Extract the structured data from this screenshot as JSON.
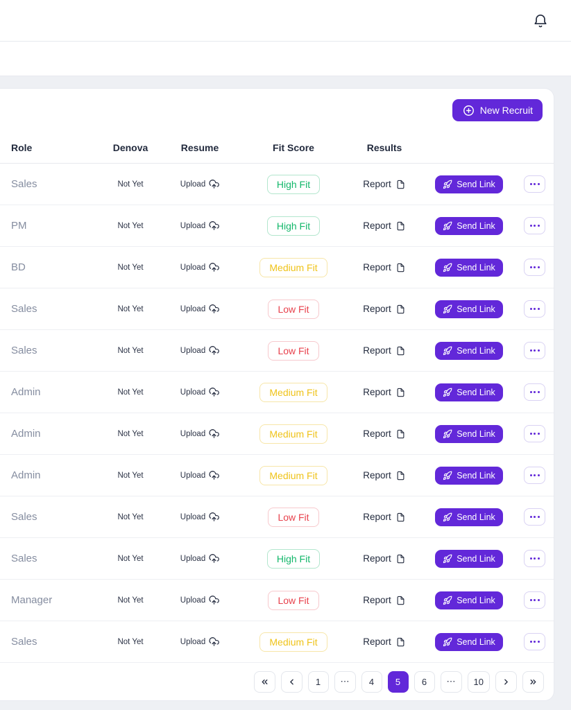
{
  "topbar": {
    "bell_icon": "bell"
  },
  "card_header": {
    "new_recruit_label": "New Recruit"
  },
  "table": {
    "columns": [
      "Role",
      "Denova",
      "Resume",
      "Fit Score",
      "Results"
    ],
    "rows": [
      {
        "role": "Sales",
        "denova": "Not Yet",
        "resume": "Upload",
        "fit": "High Fit",
        "fit_level": "high",
        "results": "Report",
        "action": "Send Link"
      },
      {
        "role": "PM",
        "denova": "Not Yet",
        "resume": "Upload",
        "fit": "High Fit",
        "fit_level": "high",
        "results": "Report",
        "action": "Send Link"
      },
      {
        "role": "BD",
        "denova": "Not Yet",
        "resume": "Upload",
        "fit": "Medium Fit",
        "fit_level": "medium",
        "results": "Report",
        "action": "Send Link"
      },
      {
        "role": "Sales",
        "denova": "Not Yet",
        "resume": "Upload",
        "fit": "Low Fit",
        "fit_level": "low",
        "results": "Report",
        "action": "Send Link"
      },
      {
        "role": "Sales",
        "denova": "Not Yet",
        "resume": "Upload",
        "fit": "Low Fit",
        "fit_level": "low",
        "results": "Report",
        "action": "Send Link"
      },
      {
        "role": "Admin",
        "denova": "Not Yet",
        "resume": "Upload",
        "fit": "Medium Fit",
        "fit_level": "medium",
        "results": "Report",
        "action": "Send Link"
      },
      {
        "role": "Admin",
        "denova": "Not Yet",
        "resume": "Upload",
        "fit": "Medium Fit",
        "fit_level": "medium",
        "results": "Report",
        "action": "Send Link"
      },
      {
        "role": "Admin",
        "denova": "Not Yet",
        "resume": "Upload",
        "fit": "Medium Fit",
        "fit_level": "medium",
        "results": "Report",
        "action": "Send Link"
      },
      {
        "role": "Sales",
        "denova": "Not Yet",
        "resume": "Upload",
        "fit": "Low Fit",
        "fit_level": "low",
        "results": "Report",
        "action": "Send Link"
      },
      {
        "role": "Sales",
        "denova": "Not Yet",
        "resume": "Upload",
        "fit": "High Fit",
        "fit_level": "high",
        "results": "Report",
        "action": "Send Link"
      },
      {
        "role": "Manager",
        "denova": "Not Yet",
        "resume": "Upload",
        "fit": "Low Fit",
        "fit_level": "low",
        "results": "Report",
        "action": "Send Link"
      },
      {
        "role": "Sales",
        "denova": "Not Yet",
        "resume": "Upload",
        "fit": "Medium Fit",
        "fit_level": "medium",
        "results": "Report",
        "action": "Send Link"
      }
    ]
  },
  "pagination": {
    "active_page": "5",
    "buttons": [
      {
        "type": "first",
        "icon": "chevrons-left-icon"
      },
      {
        "type": "prev",
        "icon": "chevron-left-icon"
      },
      {
        "type": "page",
        "label": "1",
        "active": false
      },
      {
        "type": "ellipsis",
        "label": "⋯"
      },
      {
        "type": "page",
        "label": "4",
        "active": false
      },
      {
        "type": "page",
        "label": "5",
        "active": true
      },
      {
        "type": "page",
        "label": "6",
        "active": false
      },
      {
        "type": "ellipsis",
        "label": "⋯"
      },
      {
        "type": "page",
        "label": "10",
        "active": false
      },
      {
        "type": "next",
        "icon": "chevron-right-icon"
      },
      {
        "type": "last",
        "icon": "chevrons-right-icon"
      }
    ]
  },
  "colors": {
    "primary": "#6228D9",
    "fit_high": "#12B76A",
    "fit_medium": "#EFC319",
    "fit_low": "#E8414C",
    "text_dark": "#232B3E",
    "text_muted": "#858DA0",
    "page_bg": "#EEF0F4"
  }
}
